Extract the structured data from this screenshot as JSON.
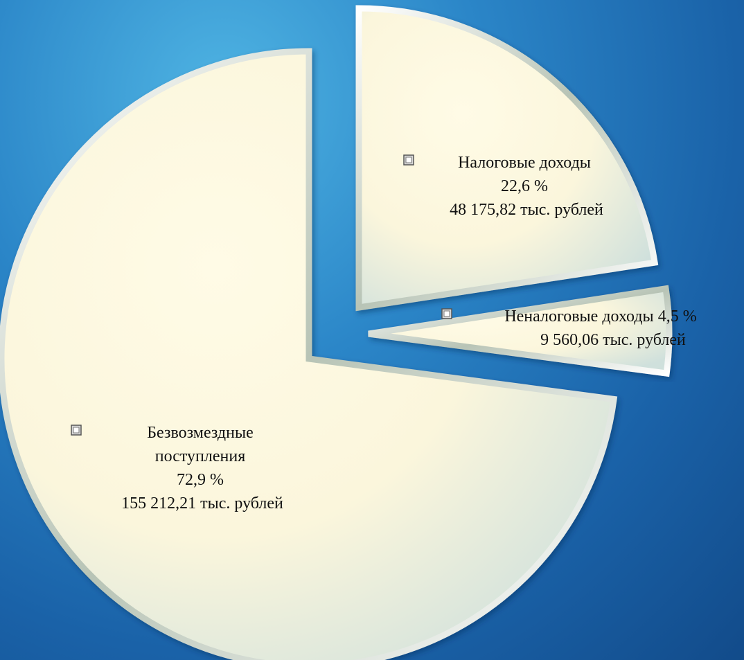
{
  "chart_data": {
    "type": "pie",
    "exploded": true,
    "slices": [
      {
        "name": "Налоговые доходы",
        "percent": 22.6,
        "percent_label": "22,6 %",
        "value": 48175.82,
        "value_label": "48 175,82 тыс. рублей"
      },
      {
        "name": "Неналоговые доходы",
        "percent": 4.5,
        "percent_label": "4,5 %",
        "value": 9560.06,
        "value_label": "9 560,06 тыс. рублей"
      },
      {
        "name": "Безвозмездные поступления",
        "name_lines": [
          "Безвозмездные",
          "поступления"
        ],
        "percent": 72.9,
        "percent_label": "72,9 %",
        "value": 155212.21,
        "value_label": "155 212,21 тыс. рублей"
      }
    ],
    "colors": {
      "slice_fill": "#fbf6dc",
      "slice_edge": "#b9c8b8",
      "background": "#2b86c8"
    }
  }
}
